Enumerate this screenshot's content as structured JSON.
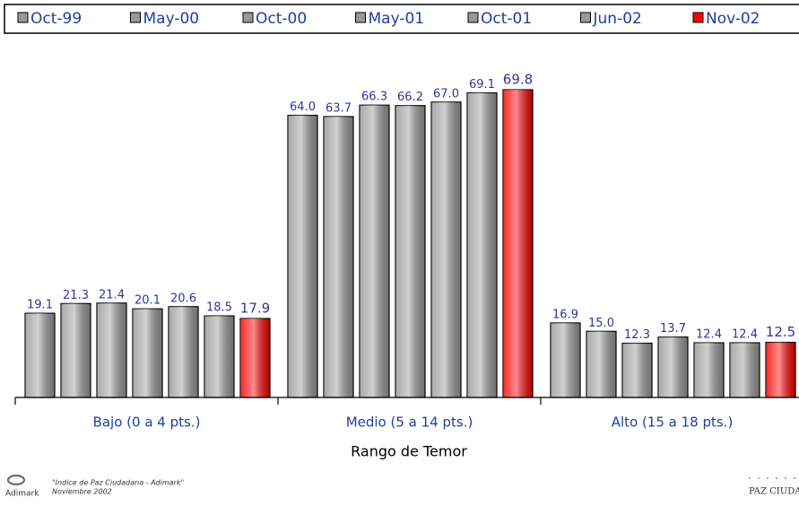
{
  "chart_data": {
    "type": "bar",
    "categories": [
      "Bajo (0 a 4 pts.)",
      "Medio (5 a 14 pts.)",
      "Alto (15 a 18 pts.)"
    ],
    "xlabel": "Rango de Temor",
    "series": [
      {
        "name": "Oct-99",
        "color": "#999999",
        "values": [
          19.1,
          64.0,
          16.9
        ],
        "value_labels": [
          "19.1",
          "64.0",
          "16.9"
        ]
      },
      {
        "name": "May-00",
        "color": "#999999",
        "values": [
          21.3,
          63.7,
          15.0
        ],
        "value_labels": [
          "21.3",
          "63.7",
          "15.0"
        ]
      },
      {
        "name": "Oct-00",
        "color": "#999999",
        "values": [
          21.4,
          66.3,
          12.3
        ],
        "value_labels": [
          "21.4",
          "66.3",
          "12.3"
        ]
      },
      {
        "name": "May-01",
        "color": "#999999",
        "values": [
          20.1,
          66.2,
          13.7
        ],
        "value_labels": [
          "20.1",
          "66.2",
          "13.7"
        ]
      },
      {
        "name": "Oct-01",
        "color": "#999999",
        "values": [
          20.6,
          67.0,
          12.4
        ],
        "value_labels": [
          "20.6",
          "67.0",
          "12.4"
        ]
      },
      {
        "name": "Jun-02",
        "color": "#999999",
        "values": [
          18.5,
          69.1,
          12.4
        ],
        "value_labels": [
          "18.5",
          "69.1",
          "12.4"
        ]
      },
      {
        "name": "Nov-02",
        "color": "#ff0000",
        "values": [
          17.9,
          69.8,
          12.5
        ],
        "value_labels": [
          "17.9",
          "69.8",
          "12.5"
        ]
      }
    ]
  },
  "footer": {
    "source": "\"Indice de Paz Ciudadana - Adimark\"",
    "date": "Noviembre 2002",
    "logo_left": "Adimark",
    "logo_right": "PAZ CIUDADANA"
  }
}
